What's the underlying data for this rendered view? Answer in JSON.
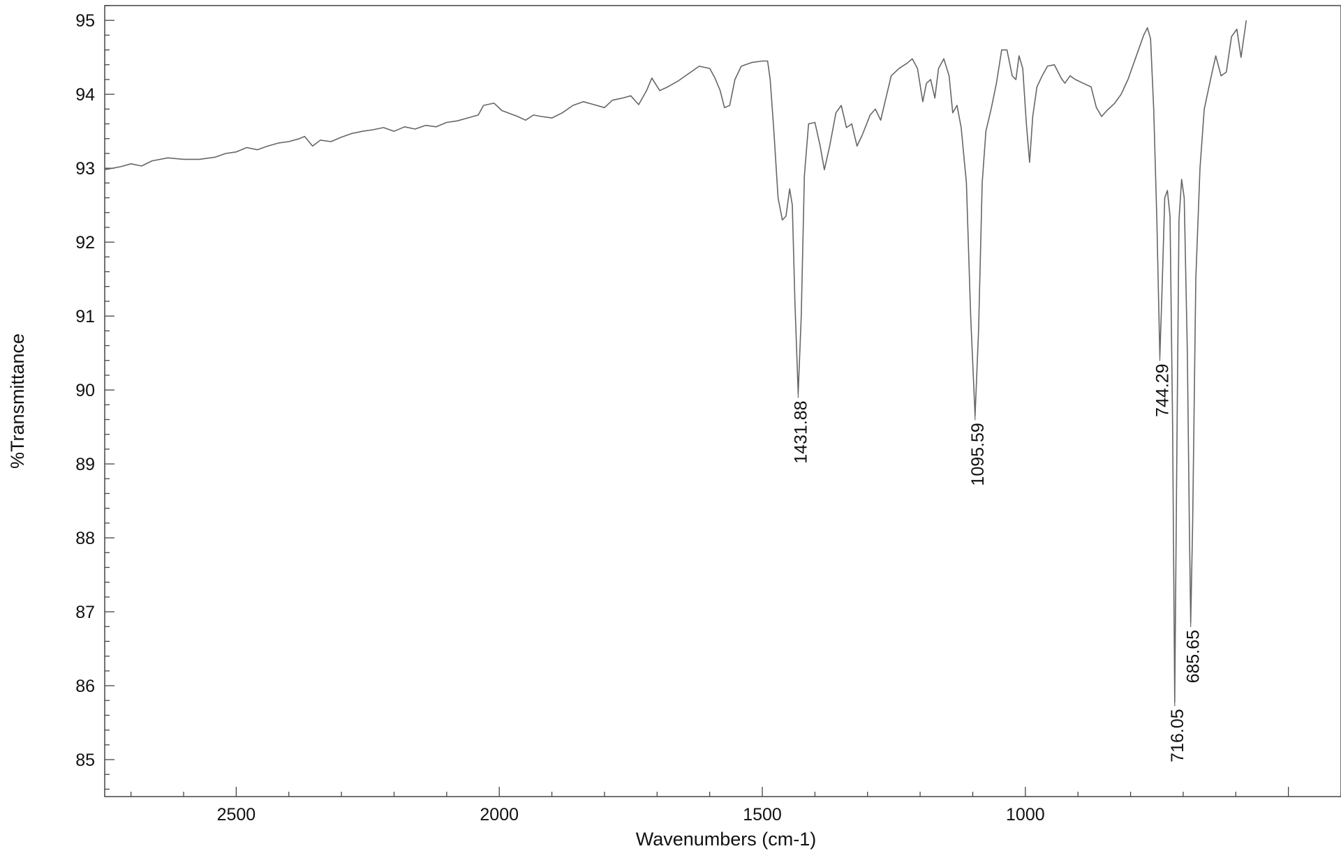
{
  "chart_data": {
    "type": "line",
    "xlabel": "Wavenumbers (cm-1)",
    "ylabel": "%Transmittance",
    "xlim": [
      2750,
      400
    ],
    "ylim": [
      84.5,
      95.2
    ],
    "x_direction": "decreasing",
    "grid": false,
    "x_ticks": [
      2500,
      2000,
      1500,
      1000
    ],
    "y_ticks": [
      85,
      86,
      87,
      88,
      89,
      90,
      91,
      92,
      93,
      94,
      95
    ],
    "series": [
      {
        "points": [
          [
            2750,
            92.98
          ],
          [
            2720,
            93.02
          ],
          [
            2700,
            93.06
          ],
          [
            2680,
            93.03
          ],
          [
            2660,
            93.1
          ],
          [
            2630,
            93.14
          ],
          [
            2600,
            93.12
          ],
          [
            2570,
            93.12
          ],
          [
            2540,
            93.15
          ],
          [
            2520,
            93.2
          ],
          [
            2500,
            93.22
          ],
          [
            2480,
            93.28
          ],
          [
            2460,
            93.25
          ],
          [
            2440,
            93.3
          ],
          [
            2420,
            93.34
          ],
          [
            2400,
            93.36
          ],
          [
            2380,
            93.4
          ],
          [
            2370,
            93.43
          ],
          [
            2355,
            93.3
          ],
          [
            2340,
            93.38
          ],
          [
            2320,
            93.36
          ],
          [
            2300,
            93.42
          ],
          [
            2280,
            93.47
          ],
          [
            2260,
            93.5
          ],
          [
            2240,
            93.52
          ],
          [
            2220,
            93.55
          ],
          [
            2200,
            93.5
          ],
          [
            2180,
            93.56
          ],
          [
            2160,
            93.53
          ],
          [
            2140,
            93.58
          ],
          [
            2120,
            93.56
          ],
          [
            2100,
            93.62
          ],
          [
            2080,
            93.64
          ],
          [
            2060,
            93.68
          ],
          [
            2040,
            93.72
          ],
          [
            2030,
            93.85
          ],
          [
            2010,
            93.88
          ],
          [
            1995,
            93.78
          ],
          [
            1980,
            93.74
          ],
          [
            1965,
            93.7
          ],
          [
            1950,
            93.65
          ],
          [
            1935,
            93.72
          ],
          [
            1920,
            93.7
          ],
          [
            1900,
            93.68
          ],
          [
            1880,
            93.75
          ],
          [
            1860,
            93.85
          ],
          [
            1840,
            93.9
          ],
          [
            1820,
            93.86
          ],
          [
            1800,
            93.82
          ],
          [
            1785,
            93.92
          ],
          [
            1765,
            93.95
          ],
          [
            1750,
            93.98
          ],
          [
            1735,
            93.86
          ],
          [
            1720,
            94.05
          ],
          [
            1710,
            94.22
          ],
          [
            1695,
            94.05
          ],
          [
            1680,
            94.1
          ],
          [
            1660,
            94.18
          ],
          [
            1640,
            94.28
          ],
          [
            1620,
            94.38
          ],
          [
            1600,
            94.35
          ],
          [
            1590,
            94.22
          ],
          [
            1580,
            94.05
          ],
          [
            1572,
            93.82
          ],
          [
            1562,
            93.85
          ],
          [
            1552,
            94.2
          ],
          [
            1540,
            94.38
          ],
          [
            1520,
            94.43
          ],
          [
            1500,
            94.45
          ],
          [
            1490,
            94.45
          ],
          [
            1485,
            94.2
          ],
          [
            1478,
            93.5
          ],
          [
            1470,
            92.6
          ],
          [
            1462,
            92.3
          ],
          [
            1455,
            92.35
          ],
          [
            1448,
            92.72
          ],
          [
            1443,
            92.5
          ],
          [
            1438,
            91.2
          ],
          [
            1431.88,
            89.95
          ],
          [
            1426,
            91.0
          ],
          [
            1420,
            92.9
          ],
          [
            1412,
            93.6
          ],
          [
            1400,
            93.62
          ],
          [
            1390,
            93.3
          ],
          [
            1382,
            92.98
          ],
          [
            1372,
            93.3
          ],
          [
            1360,
            93.75
          ],
          [
            1350,
            93.85
          ],
          [
            1340,
            93.55
          ],
          [
            1330,
            93.6
          ],
          [
            1320,
            93.3
          ],
          [
            1310,
            93.45
          ],
          [
            1295,
            93.72
          ],
          [
            1285,
            93.8
          ],
          [
            1275,
            93.65
          ],
          [
            1265,
            93.95
          ],
          [
            1255,
            94.25
          ],
          [
            1240,
            94.35
          ],
          [
            1225,
            94.42
          ],
          [
            1215,
            94.48
          ],
          [
            1205,
            94.35
          ],
          [
            1195,
            93.9
          ],
          [
            1188,
            94.15
          ],
          [
            1180,
            94.2
          ],
          [
            1172,
            93.95
          ],
          [
            1165,
            94.35
          ],
          [
            1155,
            94.48
          ],
          [
            1145,
            94.25
          ],
          [
            1138,
            93.75
          ],
          [
            1130,
            93.85
          ],
          [
            1122,
            93.55
          ],
          [
            1112,
            92.8
          ],
          [
            1104,
            91.0
          ],
          [
            1095.59,
            89.65
          ],
          [
            1089,
            90.8
          ],
          [
            1082,
            92.8
          ],
          [
            1075,
            93.5
          ],
          [
            1065,
            93.8
          ],
          [
            1055,
            94.15
          ],
          [
            1045,
            94.6
          ],
          [
            1035,
            94.6
          ],
          [
            1025,
            94.25
          ],
          [
            1018,
            94.2
          ],
          [
            1012,
            94.52
          ],
          [
            1005,
            94.35
          ],
          [
            998,
            93.6
          ],
          [
            992,
            93.08
          ],
          [
            986,
            93.7
          ],
          [
            978,
            94.1
          ],
          [
            968,
            94.25
          ],
          [
            958,
            94.38
          ],
          [
            945,
            94.4
          ],
          [
            932,
            94.22
          ],
          [
            925,
            94.15
          ],
          [
            915,
            94.25
          ],
          [
            905,
            94.2
          ],
          [
            890,
            94.15
          ],
          [
            875,
            94.1
          ],
          [
            865,
            93.82
          ],
          [
            855,
            93.7
          ],
          [
            845,
            93.78
          ],
          [
            830,
            93.88
          ],
          [
            818,
            94.0
          ],
          [
            805,
            94.2
          ],
          [
            790,
            94.5
          ],
          [
            775,
            94.8
          ],
          [
            768,
            94.9
          ],
          [
            762,
            94.75
          ],
          [
            756,
            93.8
          ],
          [
            750,
            92.3
          ],
          [
            747,
            91.3
          ],
          [
            744.29,
            90.45
          ],
          [
            740,
            91.4
          ],
          [
            735,
            92.6
          ],
          [
            730,
            92.7
          ],
          [
            725,
            92.35
          ],
          [
            720,
            89.5
          ],
          [
            716.05,
            85.78
          ],
          [
            712,
            89.2
          ],
          [
            708,
            92.3
          ],
          [
            703,
            92.85
          ],
          [
            698,
            92.6
          ],
          [
            692,
            90.5
          ],
          [
            688,
            88.0
          ],
          [
            685.65,
            86.85
          ],
          [
            682,
            88.2
          ],
          [
            676,
            91.5
          ],
          [
            668,
            93.0
          ],
          [
            660,
            93.8
          ],
          [
            648,
            94.2
          ],
          [
            638,
            94.52
          ],
          [
            628,
            94.25
          ],
          [
            618,
            94.3
          ],
          [
            608,
            94.78
          ],
          [
            598,
            94.88
          ],
          [
            590,
            94.5
          ],
          [
            580,
            95.0
          ]
        ]
      }
    ],
    "peaks": [
      {
        "x": 1431.88,
        "y": 89.95,
        "label": "1431.88"
      },
      {
        "x": 1095.59,
        "y": 89.65,
        "label": "1095.59"
      },
      {
        "x": 744.29,
        "y": 90.45,
        "label": "744.29"
      },
      {
        "x": 716.05,
        "y": 85.78,
        "label": "716.05"
      },
      {
        "x": 685.65,
        "y": 86.85,
        "label": "685.65"
      }
    ]
  }
}
